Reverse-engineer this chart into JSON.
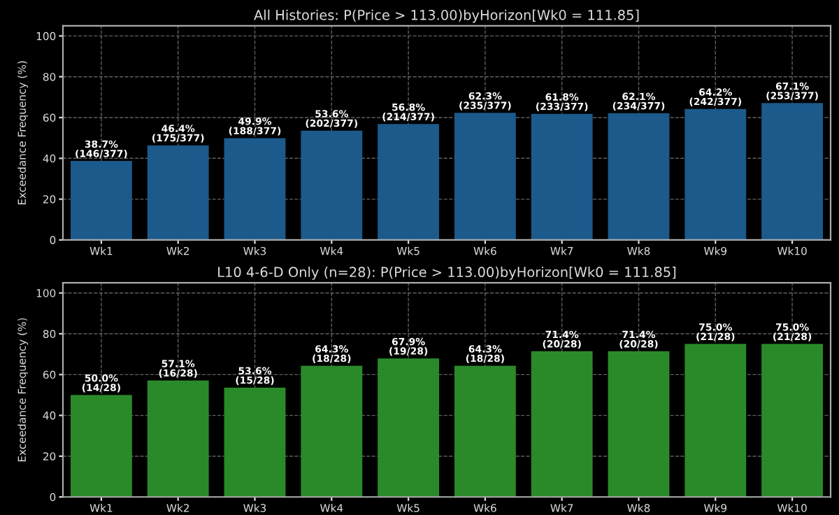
{
  "chart_data": [
    {
      "type": "bar",
      "title": "All Histories: P(Price > 113.00)byHorizon[Wk0 = 111.85]",
      "ylabel": "Exceedance Frequency (%)",
      "categories": [
        "Wk1",
        "Wk2",
        "Wk3",
        "Wk4",
        "Wk5",
        "Wk6",
        "Wk7",
        "Wk8",
        "Wk9",
        "Wk10"
      ],
      "values": [
        38.7,
        46.4,
        49.9,
        53.6,
        56.8,
        62.3,
        61.8,
        62.1,
        64.2,
        67.1
      ],
      "value_labels": [
        "38.7%\n(146/377)",
        "46.4%\n(175/377)",
        "49.9%\n(188/377)",
        "53.6%\n(202/377)",
        "56.8%\n(214/377)",
        "62.3%\n(235/377)",
        "61.8%\n(233/377)",
        "62.1%\n(234/377)",
        "64.2%\n(242/377)",
        "67.1%\n(253/377)"
      ],
      "color": "#1b5a8b",
      "ylim": [
        0,
        105
      ],
      "yticks": [
        0,
        20,
        40,
        60,
        80,
        100
      ],
      "grid": true
    },
    {
      "type": "bar",
      "title": "L10 4-6-D Only (n=28): P(Price > 113.00)byHorizon[Wk0 = 111.85]",
      "ylabel": "Exceedance Frequency (%)",
      "categories": [
        "Wk1",
        "Wk2",
        "Wk3",
        "Wk4",
        "Wk5",
        "Wk6",
        "Wk7",
        "Wk8",
        "Wk9",
        "Wk10"
      ],
      "values": [
        50.0,
        57.1,
        53.6,
        64.3,
        67.9,
        64.3,
        71.4,
        71.4,
        75.0,
        75.0
      ],
      "value_labels": [
        "50.0%\n(14/28)",
        "57.1%\n(16/28)",
        "53.6%\n(15/28)",
        "64.3%\n(18/28)",
        "67.9%\n(19/28)",
        "64.3%\n(18/28)",
        "71.4%\n(20/28)",
        "71.4%\n(20/28)",
        "75.0%\n(21/28)",
        "75.0%\n(21/28)"
      ],
      "color": "#2a8a2a",
      "ylim": [
        0,
        105
      ],
      "yticks": [
        0,
        20,
        40,
        60,
        80,
        100
      ],
      "grid": true
    }
  ]
}
